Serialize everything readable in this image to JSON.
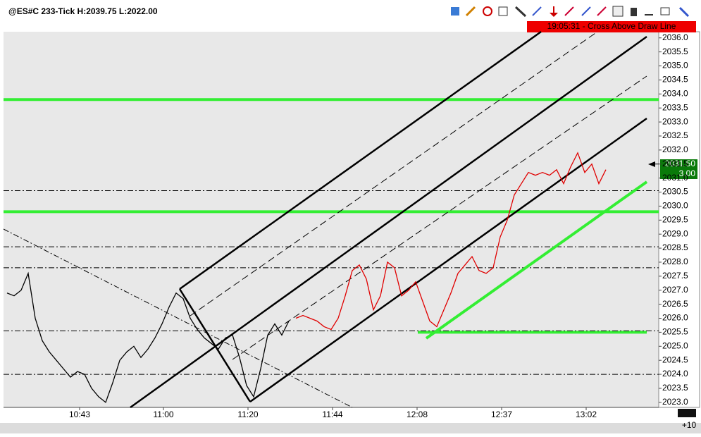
{
  "chart_data": {
    "type": "line",
    "title": "@ES#C 233-Tick H:2039.75 L:2022.00",
    "alert": "19:05:31 - Cross Above Draw Line",
    "xlim": [
      -0.5,
      92.5
    ],
    "xticks": [
      {
        "value": 10.3,
        "label": "10:43"
      },
      {
        "value": 22.2,
        "label": "11:00"
      },
      {
        "value": 34.2,
        "label": "11:20"
      },
      {
        "value": 46.2,
        "label": "11:44"
      },
      {
        "value": 58.2,
        "label": "12:08"
      },
      {
        "value": 70.2,
        "label": "12:37"
      },
      {
        "value": 82.2,
        "label": "13:02"
      }
    ],
    "ylim": [
      2022.82,
      2036.22
    ],
    "yticks": [
      {
        "value": 2023,
        "label": "2023.0"
      },
      {
        "value": 2023.5,
        "label": "2023.5"
      },
      {
        "value": 2024,
        "label": "2024.0"
      },
      {
        "value": 2024.5,
        "label": "2024.5"
      },
      {
        "value": 2025,
        "label": "2025.0"
      },
      {
        "value": 2025.5,
        "label": "2025.5"
      },
      {
        "value": 2026,
        "label": "2026.0"
      },
      {
        "value": 2026.5,
        "label": "2026.5"
      },
      {
        "value": 2027,
        "label": "2027.0"
      },
      {
        "value": 2027.5,
        "label": "2027.5"
      },
      {
        "value": 2028,
        "label": "2028.0"
      },
      {
        "value": 2028.5,
        "label": "2028.5"
      },
      {
        "value": 2029,
        "label": "2029.0"
      },
      {
        "value": 2029.5,
        "label": "2029.5"
      },
      {
        "value": 2030,
        "label": "2030.0"
      },
      {
        "value": 2030.5,
        "label": "2030.5"
      },
      {
        "value": 2031,
        "label": "2031.0"
      },
      {
        "value": 2031.5,
        "label": "2031.5"
      },
      {
        "value": 2032,
        "label": "2032.0"
      },
      {
        "value": 2032.5,
        "label": "2032.5"
      },
      {
        "value": 2033,
        "label": "2033.0"
      },
      {
        "value": 2033.5,
        "label": "2033.5"
      },
      {
        "value": 2034,
        "label": "2034.0"
      },
      {
        "value": 2034.5,
        "label": "2034.5"
      },
      {
        "value": 2035,
        "label": "2035.0"
      },
      {
        "value": 2035.5,
        "label": "2035.5"
      },
      {
        "value": 2036,
        "label": "2036.0"
      }
    ],
    "series": [
      {
        "color": "#000000",
        "values": [
          2026.9,
          2026.8,
          2027.0,
          2027.6,
          2026.0,
          2025.2,
          2024.8,
          2024.5,
          2024.2,
          2023.9,
          2024.1,
          2024.0,
          2023.5,
          2023.2,
          2023.0,
          2023.7,
          2024.5,
          2024.8,
          2025.0,
          2024.6,
          2024.9,
          2025.3,
          2025.8,
          2026.4,
          2026.9,
          2026.7,
          2026.0,
          2025.6,
          2025.3,
          2025.1,
          2024.9,
          2025.3,
          2025.4,
          2024.6,
          2023.6,
          2023.2,
          2024.2,
          2025.4,
          2025.8,
          2025.4,
          2025.9,
          null,
          null,
          null,
          null,
          null,
          null,
          null,
          null,
          null,
          null,
          null,
          null,
          null,
          null,
          null,
          null,
          null,
          null,
          null,
          null,
          null,
          null,
          null,
          null,
          null,
          null,
          null,
          null,
          null,
          null,
          null,
          null,
          null,
          null,
          null,
          null,
          null,
          null,
          null,
          null,
          null,
          null,
          null,
          null,
          null
        ]
      },
      {
        "color": "#e00000",
        "values": [
          null,
          null,
          null,
          null,
          null,
          null,
          null,
          null,
          null,
          null,
          null,
          null,
          null,
          null,
          null,
          null,
          null,
          null,
          null,
          null,
          null,
          null,
          null,
          null,
          null,
          null,
          null,
          null,
          null,
          null,
          null,
          null,
          null,
          null,
          null,
          null,
          null,
          null,
          null,
          null,
          null,
          2026.0,
          2026.1,
          2026.0,
          2025.9,
          2025.7,
          2025.6,
          2026.0,
          2026.8,
          2027.7,
          2027.9,
          2027.4,
          2026.3,
          2026.8,
          2028.0,
          2027.8,
          2026.8,
          2027.0,
          2027.3,
          2026.6,
          2025.9,
          2025.7,
          2026.3,
          2026.9,
          2027.6,
          2027.9,
          2028.2,
          2027.7,
          2027.6,
          2027.8,
          2028.9,
          2029.5,
          2030.4,
          2030.8,
          2031.2,
          2031.1,
          2031.2,
          2031.1,
          2031.3,
          2030.8,
          2031.4,
          2031.9,
          2031.2,
          2031.5,
          2030.8,
          2031.3
        ]
      }
    ],
    "hlines": [
      {
        "value": 2033.8,
        "color": "#33ee33",
        "style": "solid"
      },
      {
        "value": 2029.8,
        "color": "#33ee33",
        "style": "solid"
      },
      {
        "value": 2025.5,
        "color": "#33ee33",
        "style": "solid",
        "x_range": [
          58.3,
          90.8
        ]
      },
      {
        "value": 2030.55,
        "color": "#000000",
        "style": "dashed"
      },
      {
        "value": 2028.55,
        "color": "#000000",
        "style": "dashed"
      },
      {
        "value": 2027.8,
        "color": "#000000",
        "style": "dashed"
      },
      {
        "value": 2025.55,
        "color": "#000000",
        "style": "dashed"
      },
      {
        "value": 2024.0,
        "color": "#000000",
        "style": "dashed"
      }
    ],
    "price_marker": {
      "value": 2031.5,
      "label": "2031.50",
      "sub": {
        "value": 3,
        "label": "3.00"
      }
    },
    "corner_label": "+10"
  }
}
